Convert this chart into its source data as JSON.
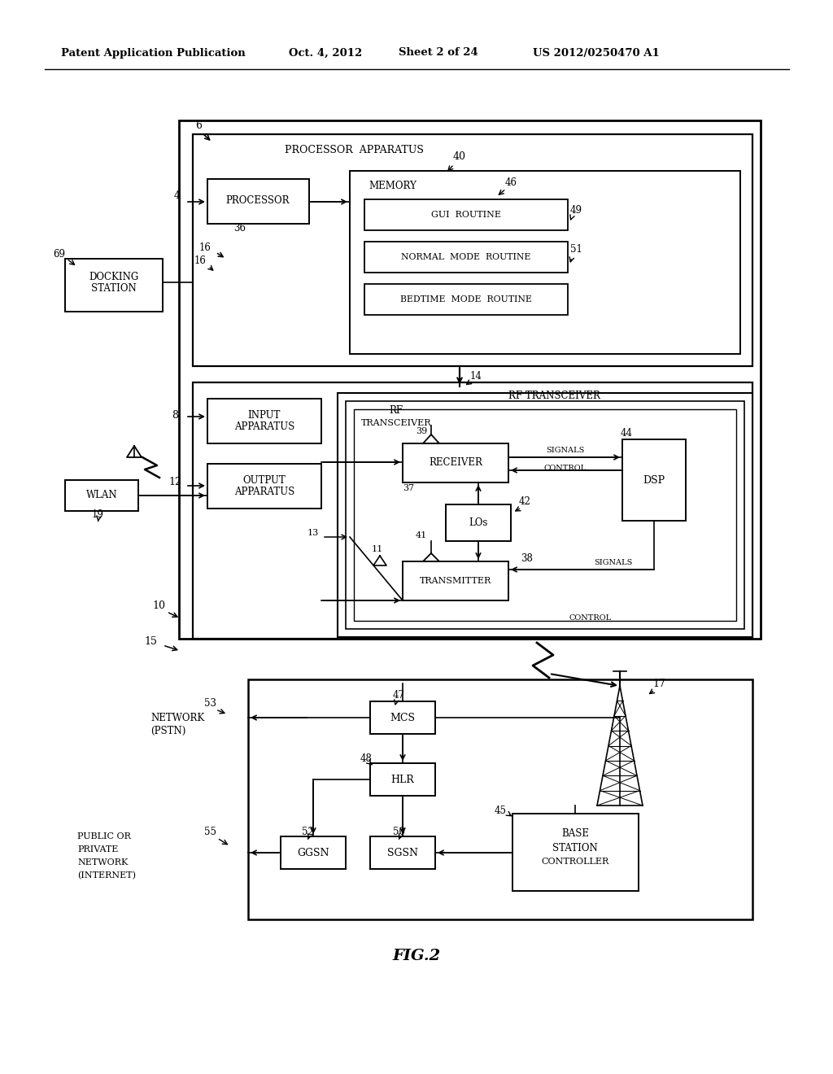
{
  "bg_color": "#ffffff",
  "header_text": "Patent Application Publication",
  "header_date": "Oct. 4, 2012",
  "header_sheet": "Sheet 2 of 24",
  "header_patent": "US 2012/0250470 A1",
  "fig_label": "FIG.2"
}
